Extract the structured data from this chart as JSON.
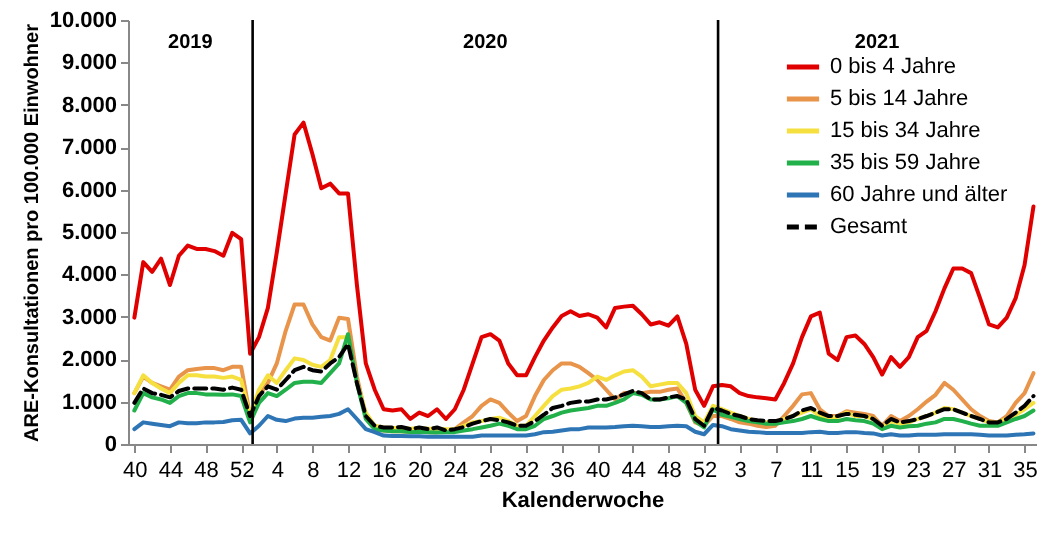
{
  "chart_data": {
    "type": "line",
    "xlabel": "Kalenderwoche",
    "ylabel": "ARE-Konsultationen pro 100.000 Einwohner",
    "x": [
      "2019-09-30",
      "2019-10-07",
      "2019-10-14",
      "2019-10-21",
      "2019-10-28",
      "2019-11-04",
      "2019-11-11",
      "2019-11-18",
      "2019-11-25",
      "2019-12-02",
      "2019-12-09",
      "2019-12-16",
      "2019-12-23",
      "2019-12-30",
      "2020-01-06",
      "2020-01-13",
      "2020-01-20",
      "2020-01-27",
      "2020-02-03",
      "2020-02-10",
      "2020-02-17",
      "2020-02-24",
      "2020-03-02",
      "2020-03-09",
      "2020-03-16",
      "2020-03-23",
      "2020-03-30",
      "2020-04-06",
      "2020-04-13",
      "2020-04-20",
      "2020-04-27",
      "2020-05-04",
      "2020-05-11",
      "2020-05-18",
      "2020-05-25",
      "2020-06-01",
      "2020-06-08",
      "2020-06-15",
      "2020-06-22",
      "2020-06-29",
      "2020-07-06",
      "2020-07-13",
      "2020-07-20",
      "2020-07-27",
      "2020-08-03",
      "2020-08-10",
      "2020-08-17",
      "2020-08-24",
      "2020-08-31",
      "2020-09-07",
      "2020-09-14",
      "2020-09-21",
      "2020-09-28",
      "2020-10-05",
      "2020-10-12",
      "2020-10-19",
      "2020-10-26",
      "2020-11-02",
      "2020-11-09",
      "2020-11-16",
      "2020-11-23",
      "2020-11-30",
      "2020-12-07",
      "2020-12-14",
      "2020-12-21",
      "2020-12-28",
      "2021-01-04",
      "2021-01-11",
      "2021-01-18",
      "2021-01-25",
      "2021-02-01",
      "2021-02-08",
      "2021-02-15",
      "2021-02-22",
      "2021-03-01",
      "2021-03-08",
      "2021-03-15",
      "2021-03-22",
      "2021-03-29",
      "2021-04-05",
      "2021-04-12",
      "2021-04-19",
      "2021-04-26",
      "2021-05-03",
      "2021-05-10",
      "2021-05-17",
      "2021-05-24",
      "2021-05-31",
      "2021-06-07",
      "2021-06-14",
      "2021-06-21",
      "2021-06-28",
      "2021-07-05",
      "2021-07-12",
      "2021-07-19",
      "2021-07-26",
      "2021-08-02",
      "2021-08-09",
      "2021-08-16",
      "2021-08-23",
      "2021-08-30",
      "2021-09-06"
    ],
    "series": [
      {
        "name": "0 bis 4 Jahre",
        "color": "#e00000",
        "values": [
          2980,
          4290,
          4060,
          4370,
          3750,
          4440,
          4680,
          4600,
          4600,
          4550,
          4440,
          4980,
          4830,
          2130,
          2520,
          3210,
          4520,
          5910,
          7300,
          7580,
          6840,
          6030,
          6140,
          5910,
          5910,
          3750,
          1900,
          1280,
          820,
          790,
          820,
          590,
          740,
          660,
          820,
          590,
          820,
          1280,
          1900,
          2520,
          2590,
          2440,
          1900,
          1620,
          1620,
          2050,
          2440,
          2750,
          3020,
          3130,
          3020,
          3060,
          2980,
          2750,
          3210,
          3240,
          3260,
          3060,
          2820,
          2870,
          2790,
          3010,
          2360,
          1280,
          900,
          1360,
          1390,
          1360,
          1200,
          1130,
          1100,
          1080,
          1050,
          1440,
          1900,
          2520,
          3010,
          3100,
          2130,
          1980,
          2520,
          2560,
          2360,
          2050,
          1640,
          2050,
          1820,
          2050,
          2520,
          2670,
          3130,
          3670,
          4140,
          4140,
          4030,
          3440,
          2820,
          2750,
          2980,
          3440,
          4220,
          5600
        ]
      },
      {
        "name": "5 bis 14 Jahre",
        "color": "#e8944a",
        "values": [
          1200,
          1590,
          1440,
          1360,
          1280,
          1590,
          1740,
          1770,
          1790,
          1790,
          1740,
          1820,
          1820,
          660,
          1130,
          1440,
          1900,
          2670,
          3290,
          3290,
          2820,
          2520,
          2440,
          2980,
          2950,
          1590,
          660,
          350,
          320,
          300,
          300,
          280,
          300,
          280,
          280,
          300,
          350,
          510,
          660,
          900,
          1050,
          970,
          740,
          540,
          660,
          1130,
          1510,
          1740,
          1900,
          1900,
          1820,
          1670,
          1510,
          1280,
          1050,
          1200,
          1200,
          1200,
          1230,
          1230,
          1280,
          1310,
          970,
          510,
          430,
          660,
          660,
          590,
          510,
          480,
          430,
          400,
          430,
          660,
          900,
          1170,
          1200,
          820,
          660,
          660,
          770,
          740,
          710,
          660,
          430,
          660,
          540,
          660,
          820,
          1000,
          1160,
          1440,
          1280,
          1050,
          820,
          660,
          540,
          510,
          660,
          970,
          1200,
          1670
        ]
      },
      {
        "name": "15 bis 34 Jahre",
        "color": "#f5e040",
        "values": [
          1200,
          1620,
          1440,
          1310,
          1200,
          1440,
          1620,
          1620,
          1590,
          1590,
          1560,
          1590,
          1510,
          660,
          1280,
          1620,
          1440,
          1740,
          2020,
          1980,
          1870,
          1820,
          1980,
          2520,
          2520,
          1440,
          740,
          430,
          390,
          380,
          380,
          360,
          380,
          360,
          360,
          350,
          350,
          430,
          510,
          540,
          590,
          620,
          540,
          430,
          430,
          660,
          900,
          1130,
          1280,
          1310,
          1360,
          1440,
          1590,
          1510,
          1620,
          1710,
          1740,
          1590,
          1360,
          1400,
          1440,
          1440,
          1200,
          660,
          510,
          900,
          820,
          740,
          660,
          590,
          540,
          510,
          510,
          590,
          660,
          740,
          820,
          660,
          590,
          640,
          740,
          660,
          660,
          590,
          400,
          540,
          480,
          510,
          590,
          660,
          740,
          850,
          820,
          740,
          660,
          590,
          510,
          510,
          590,
          690,
          820,
          970
        ]
      },
      {
        "name": "35 bis 59 Jahre",
        "color": "#22b04b",
        "values": [
          790,
          1200,
          1100,
          1050,
          970,
          1130,
          1200,
          1200,
          1170,
          1170,
          1160,
          1170,
          1130,
          510,
          970,
          1200,
          1130,
          1280,
          1440,
          1470,
          1470,
          1440,
          1670,
          1900,
          2590,
          1440,
          590,
          350,
          320,
          300,
          300,
          280,
          290,
          280,
          270,
          280,
          280,
          320,
          350,
          390,
          430,
          480,
          430,
          350,
          350,
          430,
          590,
          660,
          740,
          790,
          820,
          850,
          900,
          900,
          970,
          1050,
          1200,
          1160,
          1050,
          1050,
          1080,
          1130,
          970,
          540,
          390,
          820,
          690,
          640,
          590,
          540,
          510,
          480,
          480,
          510,
          540,
          590,
          660,
          590,
          540,
          540,
          590,
          560,
          540,
          480,
          350,
          430,
          390,
          420,
          430,
          480,
          510,
          590,
          590,
          540,
          480,
          430,
          430,
          430,
          510,
          590,
          660,
          790
        ]
      },
      {
        "name": "60 Jahre und älter",
        "color": "#2e75b6",
        "values": [
          350,
          510,
          480,
          450,
          420,
          510,
          490,
          490,
          510,
          510,
          520,
          560,
          570,
          250,
          430,
          660,
          570,
          540,
          600,
          620,
          620,
          640,
          660,
          710,
          820,
          590,
          350,
          280,
          200,
          190,
          190,
          180,
          180,
          170,
          170,
          170,
          170,
          170,
          170,
          200,
          200,
          200,
          200,
          200,
          200,
          230,
          280,
          290,
          320,
          350,
          350,
          390,
          390,
          390,
          400,
          420,
          430,
          420,
          400,
          400,
          420,
          430,
          420,
          290,
          230,
          450,
          420,
          350,
          320,
          290,
          280,
          260,
          260,
          260,
          260,
          260,
          280,
          290,
          260,
          260,
          280,
          280,
          260,
          250,
          200,
          230,
          200,
          200,
          220,
          220,
          220,
          230,
          230,
          230,
          230,
          220,
          200,
          200,
          200,
          220,
          230,
          250
        ]
      },
      {
        "name": "Gesamt",
        "color": "#000000",
        "line_style": "dashed",
        "values": [
          970,
          1310,
          1200,
          1160,
          1100,
          1250,
          1310,
          1310,
          1310,
          1310,
          1280,
          1330,
          1280,
          660,
          1130,
          1360,
          1280,
          1510,
          1740,
          1820,
          1740,
          1710,
          1900,
          2050,
          2360,
          1440,
          660,
          430,
          390,
          390,
          400,
          350,
          390,
          350,
          390,
          320,
          350,
          400,
          480,
          540,
          590,
          560,
          510,
          430,
          430,
          540,
          690,
          850,
          900,
          970,
          1000,
          1000,
          1050,
          1050,
          1100,
          1170,
          1250,
          1200,
          1050,
          1050,
          1100,
          1130,
          1050,
          590,
          430,
          850,
          790,
          710,
          660,
          590,
          560,
          540,
          540,
          590,
          660,
          790,
          850,
          740,
          660,
          660,
          710,
          690,
          660,
          590,
          430,
          590,
          510,
          540,
          590,
          660,
          740,
          820,
          820,
          740,
          660,
          590,
          510,
          510,
          590,
          740,
          900,
          1130
        ]
      }
    ],
    "xlim": [
      "2019-09-25",
      "2021-09-08"
    ],
    "xticks": [
      {
        "value": "2019-09-30",
        "label": "40"
      },
      {
        "value": "2019-10-28",
        "label": "44"
      },
      {
        "value": "2019-11-25",
        "label": "48"
      },
      {
        "value": "2019-12-23",
        "label": "52"
      },
      {
        "value": "2020-01-20",
        "label": "4"
      },
      {
        "value": "2020-02-17",
        "label": "8"
      },
      {
        "value": "2020-03-16",
        "label": "12"
      },
      {
        "value": "2020-04-13",
        "label": "16"
      },
      {
        "value": "2020-05-11",
        "label": "20"
      },
      {
        "value": "2020-06-08",
        "label": "24"
      },
      {
        "value": "2020-07-06",
        "label": "28"
      },
      {
        "value": "2020-08-03",
        "label": "32"
      },
      {
        "value": "2020-08-31",
        "label": "36"
      },
      {
        "value": "2020-09-28",
        "label": "40"
      },
      {
        "value": "2020-10-26",
        "label": "44"
      },
      {
        "value": "2020-11-23",
        "label": "48"
      },
      {
        "value": "2020-12-21",
        "label": "52"
      },
      {
        "value": "2021-01-18",
        "label": "3"
      },
      {
        "value": "2021-02-15",
        "label": "7"
      },
      {
        "value": "2021-03-15",
        "label": "11"
      },
      {
        "value": "2021-04-12",
        "label": "15"
      },
      {
        "value": "2021-05-10",
        "label": "19"
      },
      {
        "value": "2021-06-07",
        "label": "23"
      },
      {
        "value": "2021-07-05",
        "label": "27"
      },
      {
        "value": "2021-08-02",
        "label": "31"
      },
      {
        "value": "2021-08-30",
        "label": "35"
      }
    ],
    "ylim": [
      0,
      10000
    ],
    "yticks": [
      0,
      {
        "value": 1000,
        "label": "1.000"
      },
      {
        "value": 2000,
        "label": "2.000"
      },
      {
        "value": 3000,
        "label": "3.000"
      },
      {
        "value": 4000,
        "label": "4.000"
      },
      {
        "value": 5000,
        "label": "5.000"
      },
      {
        "value": 6000,
        "label": "6.000"
      },
      {
        "value": 7000,
        "label": "7.000"
      },
      {
        "value": 8000,
        "label": "8.000"
      },
      {
        "value": 9000,
        "label": "9.000"
      },
      {
        "value": 10000,
        "label": "10.000"
      }
    ],
    "ref_lines": [
      {
        "axis": "x",
        "value": "2020-01-01",
        "color": "#000000"
      },
      {
        "axis": "x",
        "value": "2021-01-01",
        "color": "#000000"
      }
    ],
    "annotations": [
      "2019",
      "2020",
      "2021"
    ],
    "legend": "top right",
    "grid": false
  }
}
